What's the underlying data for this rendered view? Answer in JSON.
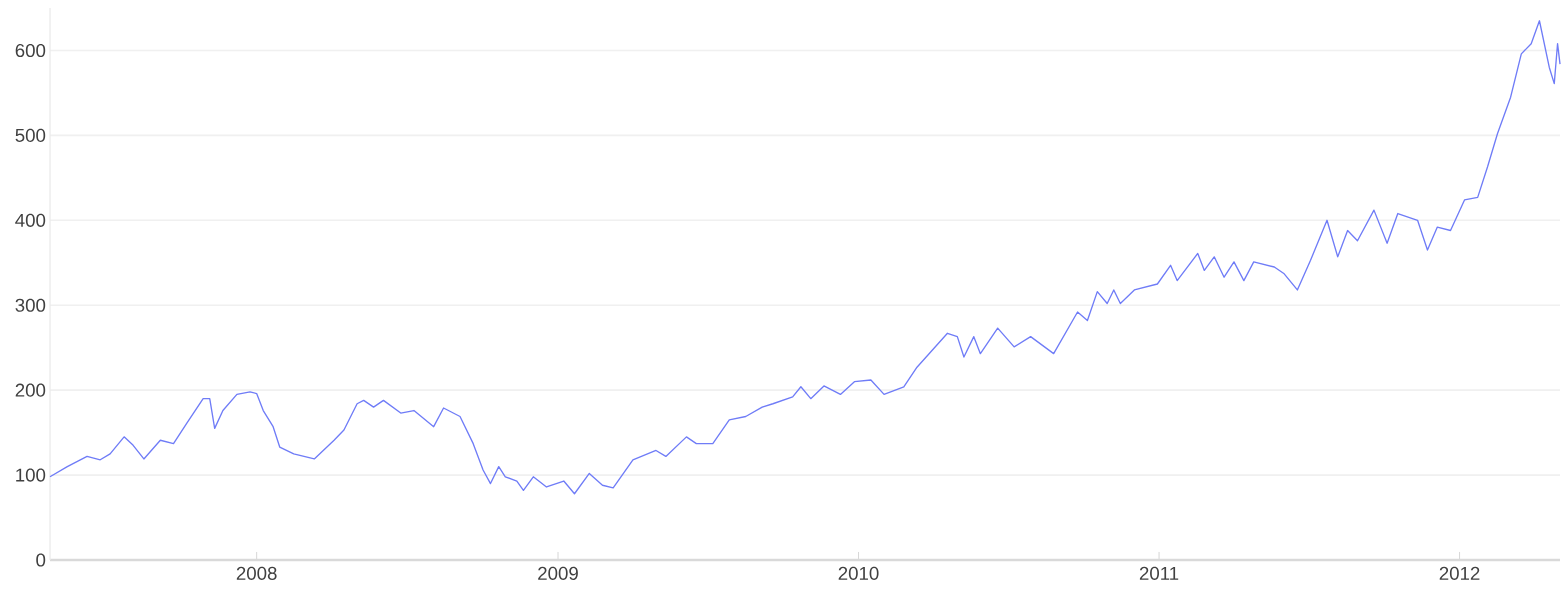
{
  "chart_data": {
    "type": "line",
    "color": "#6f7cf7",
    "grid": "y",
    "marker": "none",
    "line_style": "solid",
    "xlim": [
      "2007-04-25",
      "2012-05-02"
    ],
    "xticks": [
      "2008",
      "2009",
      "2010",
      "2011",
      "2012"
    ],
    "ylim": [
      0,
      650
    ],
    "yticks": [
      0,
      100,
      200,
      300,
      400,
      500,
      600
    ],
    "x": [
      "2007-04-25",
      "2007-05-16",
      "2007-06-09",
      "2007-06-25",
      "2007-07-07",
      "2007-07-24",
      "2007-08-04",
      "2007-08-17",
      "2007-09-06",
      "2007-09-22",
      "2007-10-08",
      "2007-10-28",
      "2007-11-05",
      "2007-11-11",
      "2007-11-21",
      "2007-12-08",
      "2007-12-24",
      "2008-01-01",
      "2008-01-09",
      "2008-01-21",
      "2008-01-29",
      "2008-02-15",
      "2008-03-11",
      "2008-04-04",
      "2008-04-16",
      "2008-05-02",
      "2008-05-10",
      "2008-05-22",
      "2008-06-03",
      "2008-06-24",
      "2008-07-10",
      "2008-08-03",
      "2008-08-15",
      "2008-09-04",
      "2008-09-20",
      "2008-10-02",
      "2008-10-11",
      "2008-10-21",
      "2008-10-29",
      "2008-11-12",
      "2008-11-20",
      "2008-12-02",
      "2008-12-18",
      "2009-01-08",
      "2009-01-21",
      "2009-02-08",
      "2009-02-24",
      "2009-03-09",
      "2009-04-02",
      "2009-04-30",
      "2009-05-12",
      "2009-06-06",
      "2009-06-18",
      "2009-07-08",
      "2009-07-28",
      "2009-08-17",
      "2009-09-06",
      "2009-09-19",
      "2009-10-13",
      "2009-10-23",
      "2009-11-04",
      "2009-11-20",
      "2009-12-10",
      "2009-12-27",
      "2010-01-16",
      "2010-02-01",
      "2010-02-25",
      "2010-03-13",
      "2010-04-19",
      "2010-05-01",
      "2010-05-09",
      "2010-05-21",
      "2010-05-29",
      "2010-06-19",
      "2010-07-09",
      "2010-07-29",
      "2010-08-26",
      "2010-09-24",
      "2010-10-06",
      "2010-10-18",
      "2010-10-30",
      "2010-11-07",
      "2010-11-15",
      "2010-12-02",
      "2010-12-30",
      "2011-01-15",
      "2011-01-23",
      "2011-02-17",
      "2011-02-25",
      "2011-03-09",
      "2011-03-21",
      "2011-04-02",
      "2011-04-14",
      "2011-04-26",
      "2011-05-21",
      "2011-06-02",
      "2011-06-18",
      "2011-07-04",
      "2011-07-24",
      "2011-08-06",
      "2011-08-18",
      "2011-08-30",
      "2011-09-19",
      "2011-10-05",
      "2011-10-18",
      "2011-11-11",
      "2011-11-23",
      "2011-12-05",
      "2011-12-21",
      "2012-01-07",
      "2012-01-23",
      "2012-02-04",
      "2012-02-16",
      "2012-03-03",
      "2012-03-16",
      "2012-03-28",
      "2012-04-07",
      "2012-04-19",
      "2012-04-25",
      "2012-04-29",
      "2012-05-02"
    ],
    "values": [
      98,
      110,
      122,
      118,
      125,
      145,
      135,
      119,
      141,
      137,
      161,
      190,
      190,
      155,
      176,
      195,
      198,
      196,
      176,
      157,
      133,
      125,
      119,
      141,
      153,
      184,
      188,
      180,
      188,
      173,
      176,
      157,
      179,
      169,
      137,
      106,
      90,
      110,
      98,
      93,
      82,
      98,
      86,
      93,
      78,
      102,
      88,
      85,
      118,
      129,
      122,
      145,
      137,
      137,
      165,
      169,
      180,
      184,
      192,
      204,
      190,
      205,
      195,
      210,
      212,
      195,
      204,
      227,
      267,
      263,
      239,
      263,
      243,
      273,
      251,
      263,
      243,
      292,
      282,
      316,
      302,
      318,
      302,
      318,
      325,
      347,
      329,
      361,
      341,
      357,
      333,
      351,
      329,
      351,
      345,
      337,
      318,
      353,
      400,
      357,
      388,
      376,
      412,
      373,
      408,
      400,
      365,
      392,
      388,
      424,
      427,
      463,
      502,
      545,
      596,
      608,
      635,
      580,
      561,
      608,
      584
    ]
  }
}
